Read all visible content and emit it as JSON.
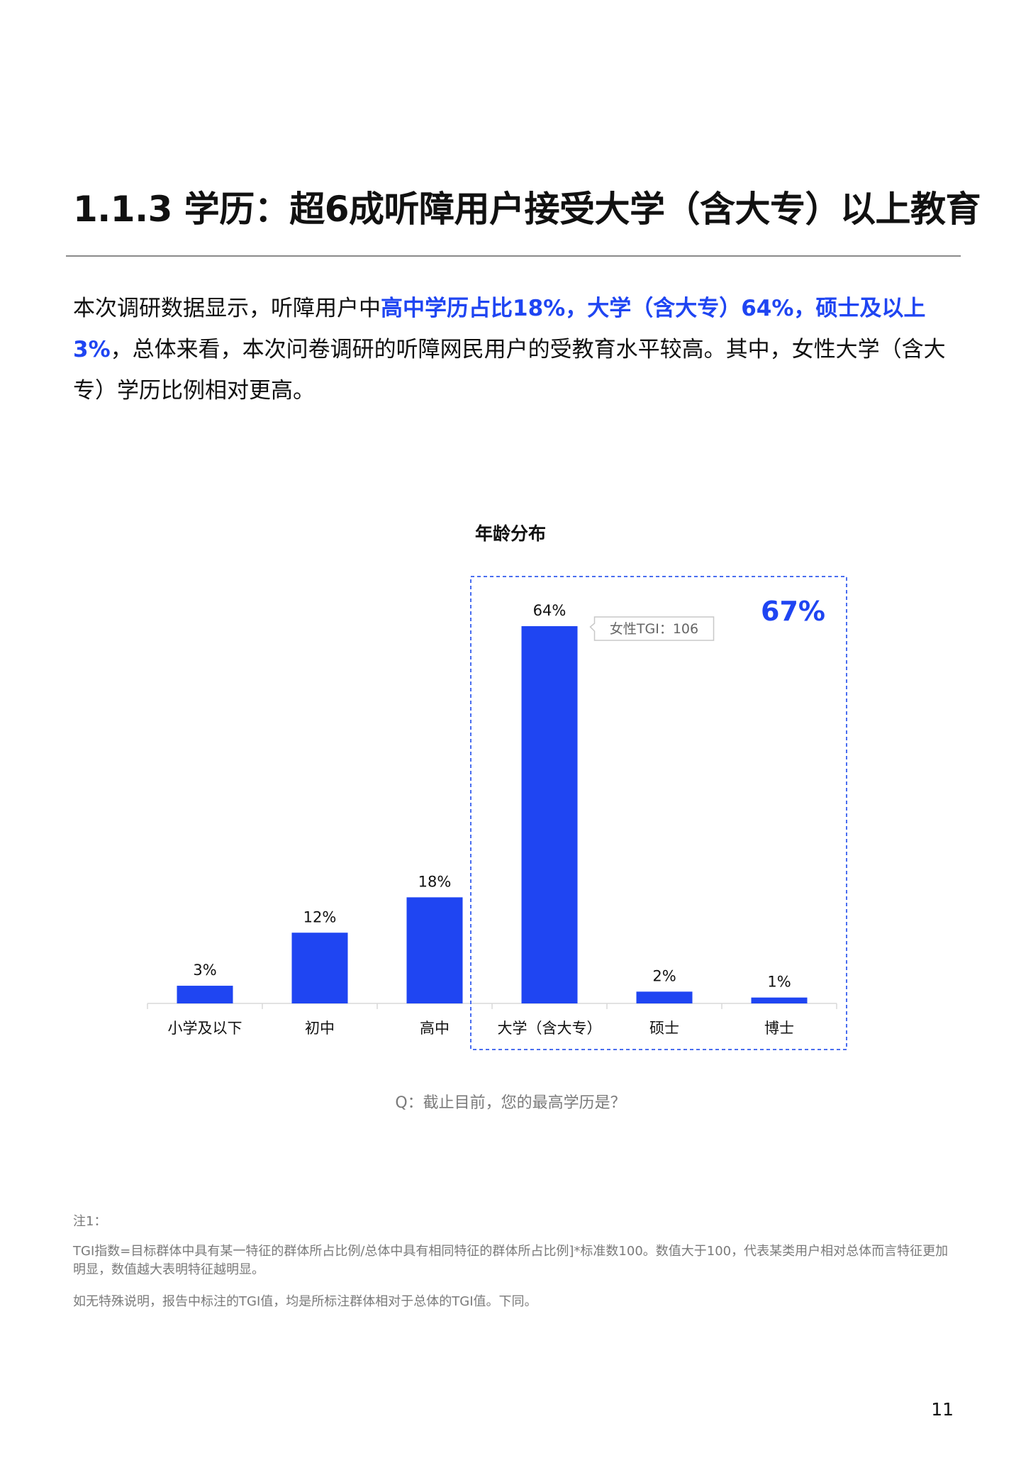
{
  "heading": "1.1.3 学历：超6成听障用户接受大学（含大专）以上教育",
  "intro": {
    "part1": "本次调研数据显示，听障用户中",
    "highlight": "高中学历占比18%，大学（含大专）64%，硕士及以上3%",
    "part2": "，总体来看，本次问卷调研的听障网民用户的受教育水平较高。其中，女性大学（含大专）学历比例相对更高。"
  },
  "chart_data": {
    "type": "bar",
    "title": "年龄分布",
    "categories": [
      "小学及以下",
      "初中",
      "高中",
      "大学（含大专）",
      "硕士",
      "博士"
    ],
    "values": [
      3,
      12,
      18,
      64,
      2,
      1
    ],
    "value_labels": [
      "3%",
      "12%",
      "18%",
      "64%",
      "2%",
      "1%"
    ],
    "ylim": [
      0,
      64
    ],
    "bar_color": "#1f45f2",
    "highlight_group": {
      "categories": [
        "大学（含大专）",
        "硕士",
        "博士"
      ],
      "total_label": "67%",
      "color": "#1f45f2"
    },
    "callout": {
      "category": "大学（含大专）",
      "text": "女性TGI：106"
    }
  },
  "question": "Q：截止目前，您的最高学历是？",
  "notes": {
    "label": "注1：",
    "line1": "TGI指数=目标群体中具有某一特征的群体所占比例/总体中具有相同特征的群体所占比例]*标准数100。数值大于100，代表某类用户相对总体而言特征更加明显，数值越大表明特征越明显。",
    "line2": "如无特殊说明，报告中标注的TGI值，均是所标注群体相对于总体的TGI值。下同。"
  },
  "page_number": "11"
}
